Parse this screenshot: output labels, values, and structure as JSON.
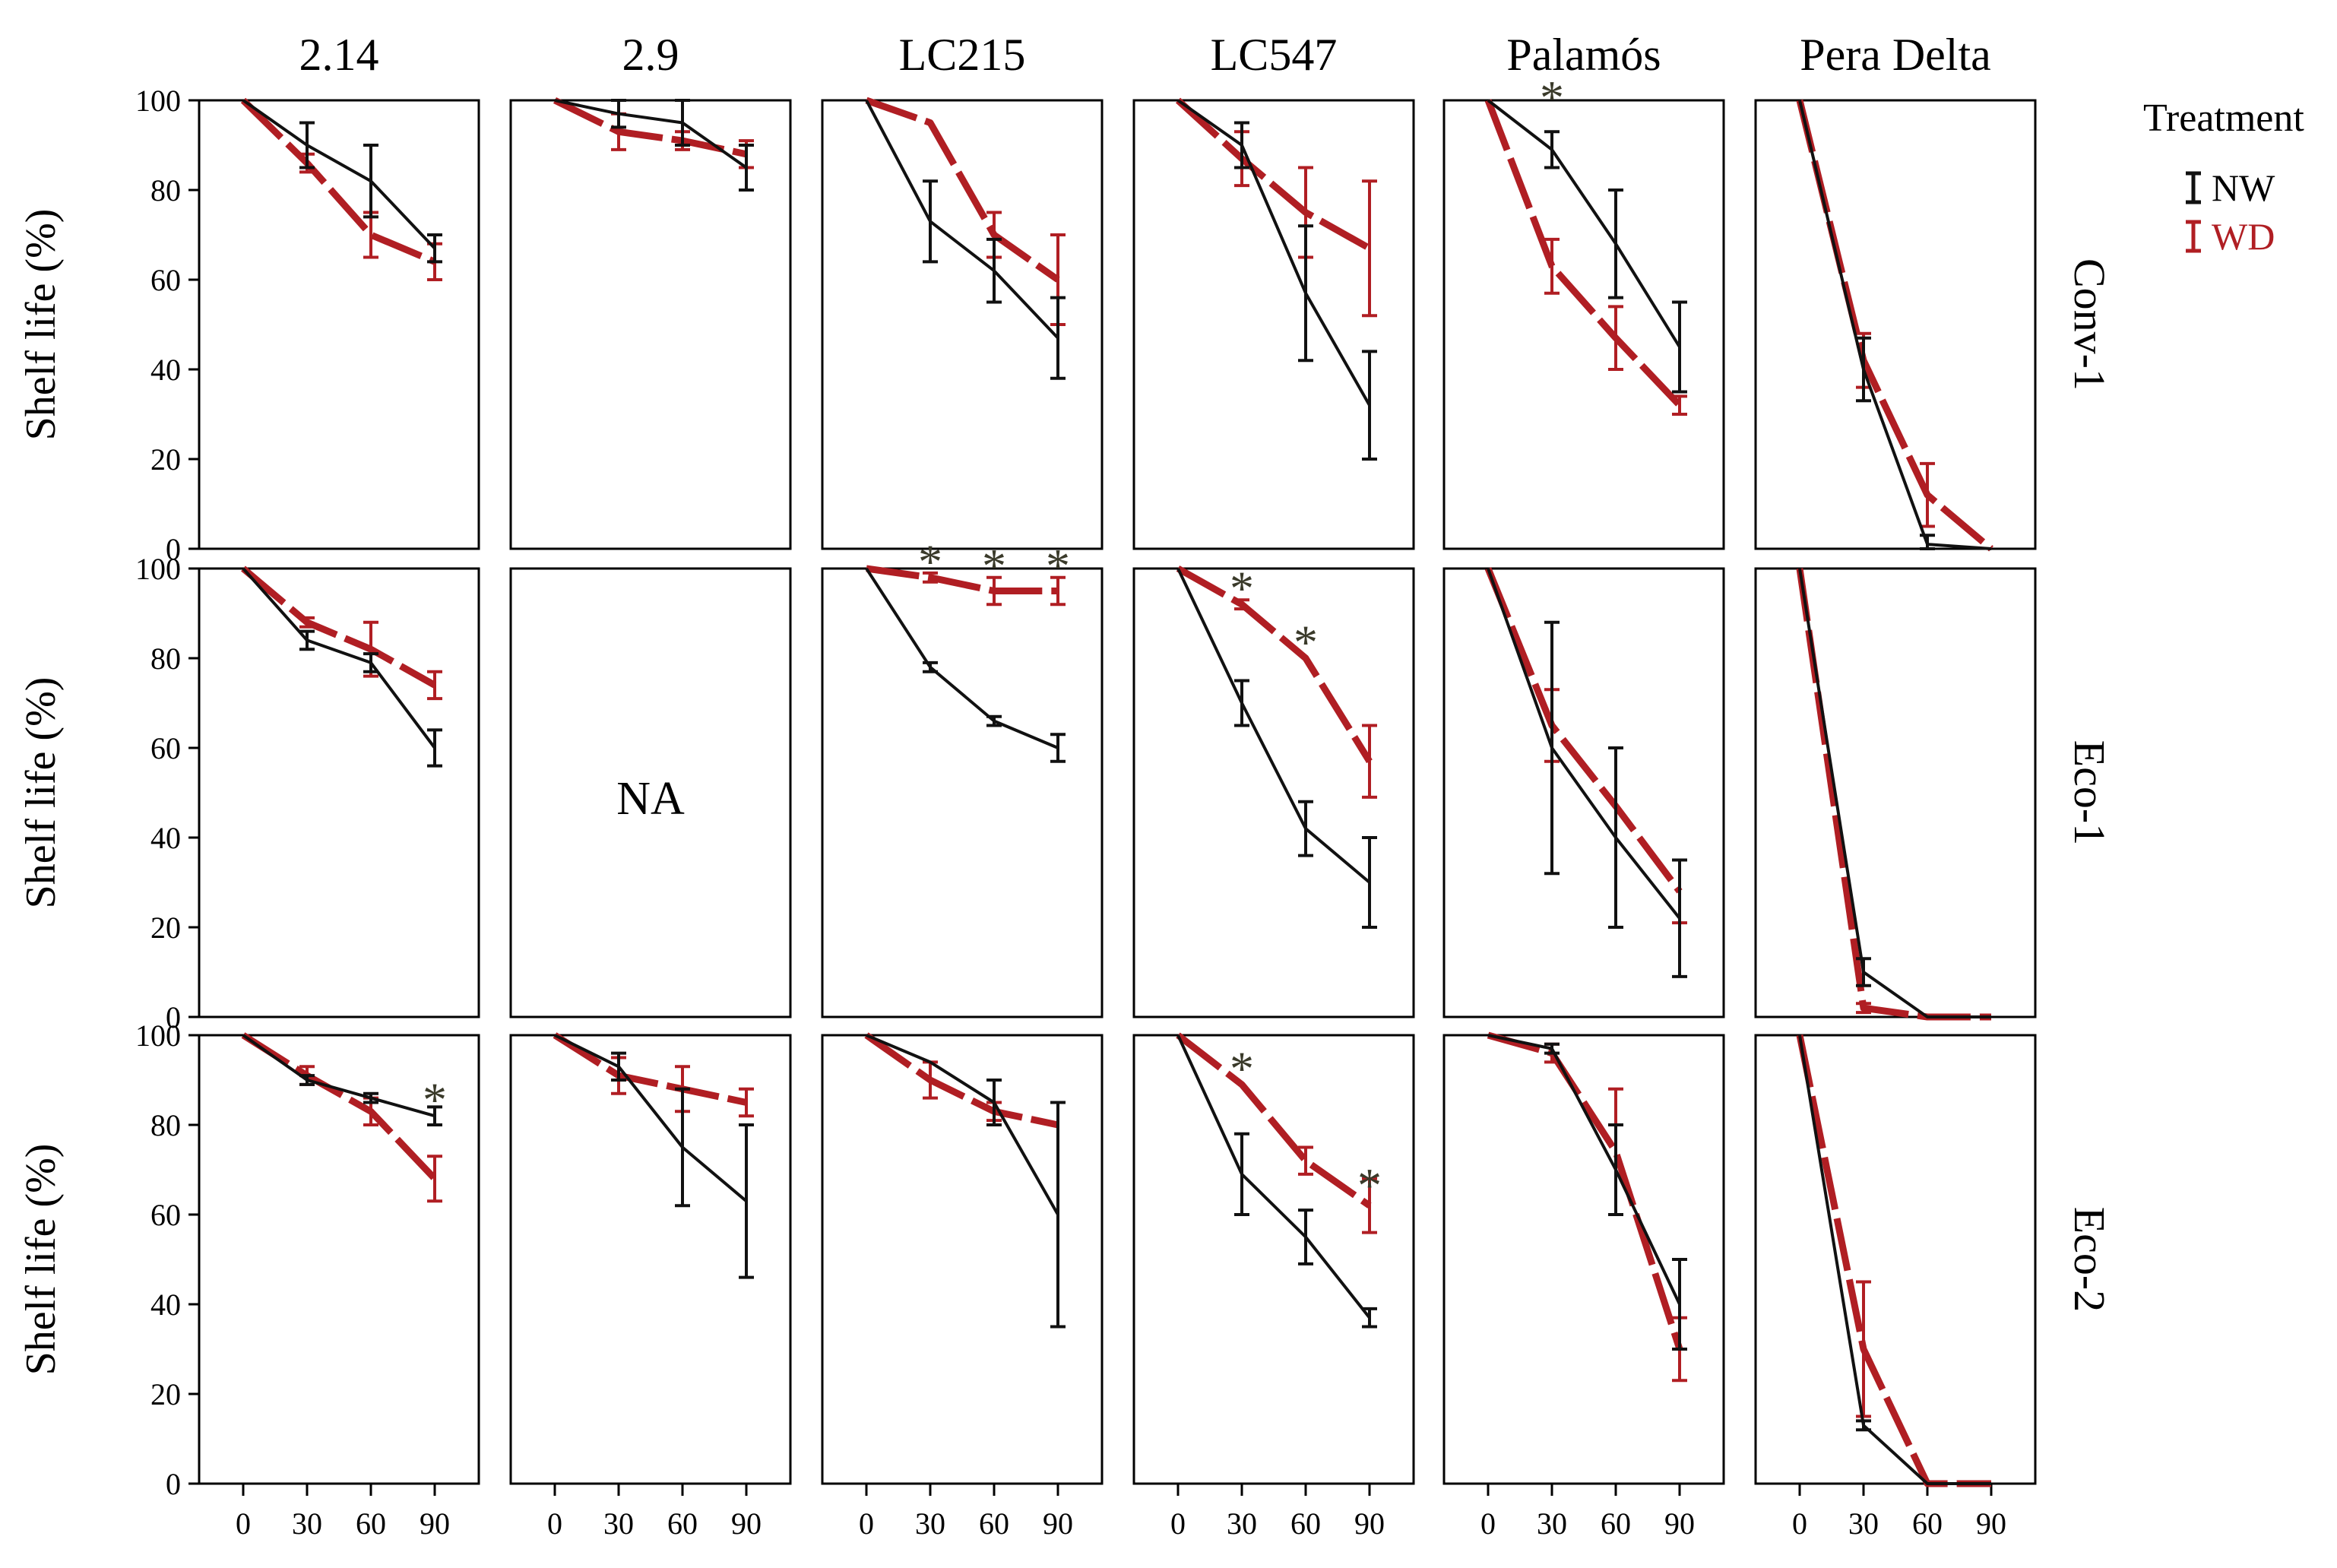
{
  "legend": {
    "title": "Treatment",
    "entries": [
      {
        "label": "NW",
        "color": "#111111"
      },
      {
        "label": "WD",
        "color": "#B01E23"
      }
    ]
  },
  "colors": {
    "NW": "#111111",
    "WD": "#B01E23"
  },
  "chart_data": {
    "type": "line",
    "facet_columns": [
      "2.14",
      "2.9",
      "LC215",
      "LC547",
      "Palamós",
      "Pera Delta"
    ],
    "facet_rows": [
      "Conv-1",
      "Eco-1",
      "Eco-2"
    ],
    "x": [
      0,
      30,
      60,
      90
    ],
    "x_ticks": [
      "0",
      "30",
      "60",
      "90"
    ],
    "y_ticks": [
      "0",
      "20",
      "40",
      "60",
      "80",
      "100"
    ],
    "xlim": [
      0,
      90
    ],
    "ylim": [
      0,
      100
    ],
    "ylabel": "Shelf life (%)",
    "xlabel": "",
    "legend_title": "Treatment",
    "legend_position": "right",
    "na_label": "NA",
    "significance_marker": "*",
    "panels": [
      {
        "row": "Conv-1",
        "col": "2.14",
        "series": [
          {
            "name": "NW",
            "values": [
              100,
              90,
              82,
              67
            ],
            "err": [
              0,
              5,
              8,
              3
            ]
          },
          {
            "name": "WD",
            "values": [
              100,
              86,
              70,
              64
            ],
            "err": [
              0,
              2,
              5,
              4
            ]
          }
        ],
        "stars": []
      },
      {
        "row": "Conv-1",
        "col": "2.9",
        "series": [
          {
            "name": "NW",
            "values": [
              100,
              97,
              95,
              85
            ],
            "err": [
              0,
              3,
              5,
              5
            ]
          },
          {
            "name": "WD",
            "values": [
              100,
              93,
              91,
              88
            ],
            "err": [
              0,
              4,
              2,
              3
            ]
          }
        ],
        "stars": []
      },
      {
        "row": "Conv-1",
        "col": "LC215",
        "series": [
          {
            "name": "NW",
            "values": [
              100,
              73,
              62,
              47
            ],
            "err": [
              0,
              9,
              7,
              9
            ]
          },
          {
            "name": "WD",
            "values": [
              100,
              95,
              70,
              60
            ],
            "err": [
              0,
              0,
              5,
              10
            ]
          }
        ],
        "stars": []
      },
      {
        "row": "Conv-1",
        "col": "LC547",
        "series": [
          {
            "name": "NW",
            "values": [
              100,
              90,
              57,
              32
            ],
            "err": [
              0,
              5,
              15,
              12
            ]
          },
          {
            "name": "WD",
            "values": [
              100,
              87,
              75,
              67
            ],
            "err": [
              0,
              6,
              10,
              15
            ]
          }
        ],
        "stars": []
      },
      {
        "row": "Conv-1",
        "col": "Palamós",
        "series": [
          {
            "name": "NW",
            "values": [
              100,
              89,
              68,
              45
            ],
            "err": [
              0,
              4,
              12,
              10
            ]
          },
          {
            "name": "WD",
            "values": [
              100,
              63,
              47,
              32
            ],
            "err": [
              0,
              6,
              7,
              2
            ]
          }
        ],
        "stars": [
          {
            "x": 30,
            "y": 102
          }
        ]
      },
      {
        "row": "Conv-1",
        "col": "Pera Delta",
        "series": [
          {
            "name": "NW",
            "values": [
              100,
              40,
              1,
              0
            ],
            "err": [
              0,
              7,
              2,
              0
            ]
          },
          {
            "name": "WD",
            "values": [
              100,
              42,
              12,
              0
            ],
            "err": [
              0,
              6,
              7,
              0
            ]
          }
        ],
        "stars": []
      },
      {
        "row": "Eco-1",
        "col": "2.14",
        "series": [
          {
            "name": "NW",
            "values": [
              100,
              84,
              79,
              60
            ],
            "err": [
              0,
              2,
              2,
              4
            ]
          },
          {
            "name": "WD",
            "values": [
              100,
              88,
              82,
              74
            ],
            "err": [
              0,
              1,
              6,
              3
            ]
          }
        ],
        "stars": []
      },
      {
        "row": "Eco-1",
        "col": "2.9",
        "na": true,
        "series": [],
        "stars": []
      },
      {
        "row": "Eco-1",
        "col": "LC215",
        "series": [
          {
            "name": "NW",
            "values": [
              100,
              78,
              66,
              60
            ],
            "err": [
              0,
              1,
              1,
              3
            ]
          },
          {
            "name": "WD",
            "values": [
              100,
              98,
              95,
              95
            ],
            "err": [
              0,
              1,
              3,
              3
            ]
          }
        ],
        "stars": [
          {
            "x": 30,
            "y": 103
          },
          {
            "x": 60,
            "y": 102
          },
          {
            "x": 90,
            "y": 102
          }
        ]
      },
      {
        "row": "Eco-1",
        "col": "LC547",
        "series": [
          {
            "name": "NW",
            "values": [
              100,
              70,
              42,
              30
            ],
            "err": [
              0,
              5,
              6,
              10
            ]
          },
          {
            "name": "WD",
            "values": [
              100,
              92,
              80,
              57
            ],
            "err": [
              0,
              1,
              0,
              8
            ]
          }
        ],
        "stars": [
          {
            "x": 30,
            "y": 97
          },
          {
            "x": 60,
            "y": 85
          }
        ]
      },
      {
        "row": "Eco-1",
        "col": "Palamós",
        "series": [
          {
            "name": "NW",
            "values": [
              100,
              60,
              40,
              22
            ],
            "err": [
              0,
              28,
              20,
              13
            ]
          },
          {
            "name": "WD",
            "values": [
              100,
              65,
              47,
              28
            ],
            "err": [
              0,
              8,
              0,
              7
            ]
          }
        ],
        "stars": []
      },
      {
        "row": "Eco-1",
        "col": "Pera Delta",
        "series": [
          {
            "name": "NW",
            "values": [
              100,
              10,
              0,
              0
            ],
            "err": [
              0,
              3,
              0,
              0
            ]
          },
          {
            "name": "WD",
            "values": [
              100,
              2,
              0,
              0
            ],
            "err": [
              0,
              1,
              0,
              0
            ]
          }
        ],
        "stars": []
      },
      {
        "row": "Eco-2",
        "col": "2.14",
        "series": [
          {
            "name": "NW",
            "values": [
              100,
              90,
              86,
              82
            ],
            "err": [
              0,
              1,
              1,
              2
            ]
          },
          {
            "name": "WD",
            "values": [
              100,
              91,
              83,
              68
            ],
            "err": [
              0,
              2,
              3,
              5
            ]
          }
        ],
        "stars": [
          {
            "x": 90,
            "y": 87
          }
        ]
      },
      {
        "row": "Eco-2",
        "col": "2.9",
        "series": [
          {
            "name": "NW",
            "values": [
              100,
              93,
              75,
              63
            ],
            "err": [
              0,
              3,
              13,
              17
            ]
          },
          {
            "name": "WD",
            "values": [
              100,
              91,
              88,
              85
            ],
            "err": [
              0,
              4,
              5,
              3
            ]
          }
        ],
        "stars": []
      },
      {
        "row": "Eco-2",
        "col": "LC215",
        "series": [
          {
            "name": "NW",
            "values": [
              100,
              94,
              85,
              60
            ],
            "err": [
              0,
              0,
              5,
              25
            ]
          },
          {
            "name": "WD",
            "values": [
              100,
              90,
              83,
              80
            ],
            "err": [
              0,
              4,
              2,
              0
            ]
          }
        ],
        "stars": []
      },
      {
        "row": "Eco-2",
        "col": "LC547",
        "series": [
          {
            "name": "NW",
            "values": [
              100,
              69,
              55,
              37
            ],
            "err": [
              0,
              9,
              6,
              2
            ]
          },
          {
            "name": "WD",
            "values": [
              100,
              89,
              72,
              62
            ],
            "err": [
              0,
              0,
              3,
              6
            ]
          }
        ],
        "stars": [
          {
            "x": 30,
            "y": 94
          },
          {
            "x": 90,
            "y": 68
          }
        ]
      },
      {
        "row": "Eco-2",
        "col": "Palamós",
        "series": [
          {
            "name": "NW",
            "values": [
              100,
              97,
              70,
              40
            ],
            "err": [
              0,
              1,
              10,
              10
            ]
          },
          {
            "name": "WD",
            "values": [
              100,
              96,
              74,
              30
            ],
            "err": [
              0,
              2,
              14,
              7
            ]
          }
        ],
        "stars": []
      },
      {
        "row": "Eco-2",
        "col": "Pera Delta",
        "series": [
          {
            "name": "NW",
            "values": [
              100,
              13,
              0,
              0
            ],
            "err": [
              0,
              1,
              0,
              0
            ]
          },
          {
            "name": "WD",
            "values": [
              100,
              30,
              0,
              0
            ],
            "err": [
              0,
              15,
              0,
              0
            ]
          }
        ],
        "stars": []
      }
    ]
  }
}
